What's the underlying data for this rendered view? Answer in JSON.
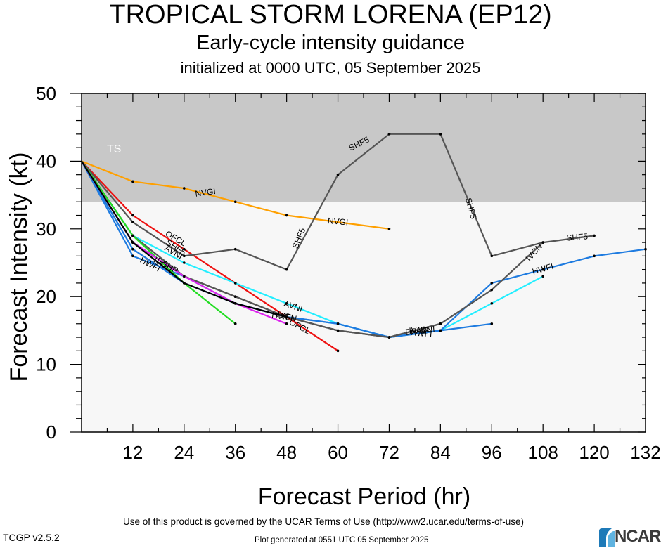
{
  "header": {
    "title": "TROPICAL STORM LORENA (EP12)",
    "subtitle": "Early-cycle intensity guidance",
    "init": "initialized at 0000 UTC, 05 September 2025"
  },
  "footer": {
    "terms": "Use of this product is governed by the UCAR Terms of Use (http://www2.ucar.edu/terms-of-use)",
    "version": "TCGP v2.5.2",
    "generated": "Plot generated at 0551 UTC   05 September 2025",
    "logo": "NCAR"
  },
  "colors": {
    "ts_band": "#c8c8c8",
    "below_band": "#f7f7f7",
    "OFCL": "#ee1111",
    "NVGI": "#ffa000",
    "SHF5": "#555555",
    "DSHP": "#333333",
    "AVNI": "#22eeff",
    "HWFI": "#1e7be0",
    "IVCN": "#555555",
    "green": "#22dd22",
    "magenta": "#dd22ee",
    "black": "#000000"
  },
  "chart_data": {
    "type": "line",
    "title": "TROPICAL STORM LORENA (EP12)",
    "xlabel": "Forecast Period (hr)",
    "ylabel": "Forecast Intensity (kt)",
    "xlim": [
      0,
      132
    ],
    "ylim": [
      0,
      50
    ],
    "xticks": [
      12,
      24,
      36,
      48,
      60,
      72,
      84,
      96,
      108,
      120,
      132
    ],
    "yticks": [
      0,
      10,
      20,
      30,
      40,
      50
    ],
    "bands": [
      {
        "label": "TS",
        "from": 34,
        "to": 50
      }
    ],
    "series": [
      {
        "name": "OFCL",
        "color_key": "OFCL",
        "x": [
          0,
          12,
          24,
          36,
          48,
          60
        ],
        "y": [
          40,
          32,
          27,
          22,
          17,
          12
        ]
      },
      {
        "name": "NVGI",
        "color_key": "NVGI",
        "x": [
          0,
          12,
          24,
          36,
          48,
          72
        ],
        "y": [
          40,
          37,
          36,
          34,
          32,
          30
        ]
      },
      {
        "name": "SHF5",
        "color_key": "SHF5",
        "x": [
          0,
          12,
          24,
          36,
          48,
          60,
          72,
          84,
          96,
          108,
          120
        ],
        "y": [
          40,
          31,
          26,
          27,
          24,
          38,
          44,
          44,
          26,
          28,
          29
        ]
      },
      {
        "name": "",
        "color_key": "DSHP",
        "x": [
          0,
          12,
          24,
          36,
          48,
          60,
          72,
          84
        ],
        "y": [
          40,
          28,
          23,
          20,
          17,
          15,
          14,
          16
        ]
      },
      {
        "name": "AVNI",
        "color_key": "AVNI",
        "x": [
          0,
          12,
          24,
          36,
          48,
          60,
          72,
          84,
          96,
          108
        ],
        "y": [
          40,
          29,
          25,
          22,
          19,
          16,
          14,
          15,
          19,
          23
        ]
      },
      {
        "name": "HWFI",
        "color_key": "HWFI",
        "x": [
          0,
          12,
          24,
          36,
          48,
          60,
          72,
          84,
          96,
          108,
          120,
          132
        ],
        "y": [
          40,
          26,
          23,
          19,
          17,
          16,
          14,
          15,
          22,
          24,
          26,
          27
        ]
      },
      {
        "name": "",
        "color_key": "HWFI",
        "x": [
          0,
          12,
          24,
          36,
          48,
          60,
          72,
          84,
          96
        ],
        "y": [
          40,
          27,
          22,
          19,
          17,
          16,
          14,
          15,
          16
        ]
      },
      {
        "name": "IVCN",
        "color_key": "IVCN",
        "x": [
          0,
          12,
          24,
          36,
          48,
          60,
          72,
          84,
          96,
          108
        ],
        "y": [
          40,
          29,
          23,
          20,
          17,
          15,
          14,
          16,
          21,
          28
        ]
      },
      {
        "name": "",
        "color_key": "green",
        "x": [
          0,
          12,
          24,
          36
        ],
        "y": [
          40,
          29,
          22,
          16
        ]
      },
      {
        "name": "",
        "color_key": "magenta",
        "x": [
          0,
          12,
          24,
          36,
          48
        ],
        "y": [
          40,
          28,
          23,
          19,
          16
        ]
      },
      {
        "name": "",
        "color_key": "black",
        "x": [
          0,
          12,
          24,
          36,
          48
        ],
        "y": [
          40,
          28,
          22,
          19,
          17
        ]
      }
    ],
    "annotations": [
      {
        "text": "OFCL",
        "x": 22,
        "y": 28.5,
        "rot": 30
      },
      {
        "text": "OFCL",
        "x": 51,
        "y": 15.5,
        "rot": 28
      },
      {
        "text": "NVGI",
        "x": 29,
        "y": 35.3,
        "rot": -8
      },
      {
        "text": "NVGI",
        "x": 60,
        "y": 31.0,
        "rot": 5
      },
      {
        "text": "SHF5",
        "x": 22,
        "y": 27.2,
        "rot": 32
      },
      {
        "text": "SHF5",
        "x": 51,
        "y": 28.6,
        "rot": -68
      },
      {
        "text": "SHF5",
        "x": 65,
        "y": 42.5,
        "rot": -26
      },
      {
        "text": "SHF5",
        "x": 91,
        "y": 33.0,
        "rot": 75
      },
      {
        "text": "SHF5",
        "x": 116,
        "y": 28.7,
        "rot": -4
      },
      {
        "text": "AVNI",
        "x": 21.5,
        "y": 26.5,
        "rot": 30
      },
      {
        "text": "AVNI",
        "x": 49.5,
        "y": 18.5,
        "rot": 18
      },
      {
        "text": "AVNI",
        "x": 80.5,
        "y": 15.0,
        "rot": -5
      },
      {
        "text": "HWFI",
        "x": 16,
        "y": 24.7,
        "rot": 28
      },
      {
        "text": "HWFI",
        "x": 47,
        "y": 17.0,
        "rot": 8
      },
      {
        "text": "HWFI",
        "x": 79.5,
        "y": 14.5,
        "rot": 5
      },
      {
        "text": "HWFI",
        "x": 108,
        "y": 24.0,
        "rot": -16
      },
      {
        "text": "IVCN",
        "x": 19,
        "y": 24.7,
        "rot": 30
      },
      {
        "text": "IVCN",
        "x": 48,
        "y": 17.0,
        "rot": 15
      },
      {
        "text": "IVCN",
        "x": 79,
        "y": 15.0,
        "rot": -5
      },
      {
        "text": "IVCN",
        "x": 106,
        "y": 26.5,
        "rot": -48
      },
      {
        "text": "DSHP",
        "x": 20,
        "y": 24.5,
        "rot": 30
      },
      {
        "text": "DSHP",
        "x": 78.5,
        "y": 14.8,
        "rot": -5
      }
    ],
    "grid": false,
    "legend": "none"
  }
}
